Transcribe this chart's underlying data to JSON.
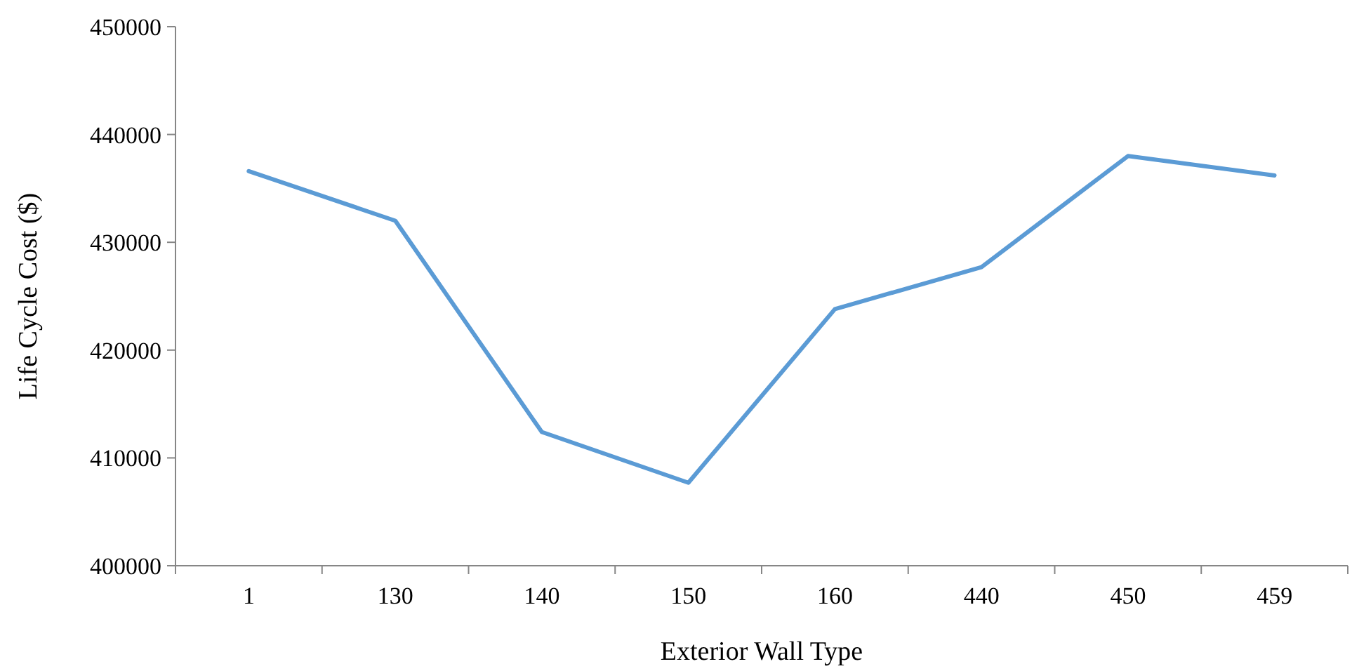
{
  "chart_data": {
    "type": "line",
    "xlabel": "Exterior Wall Type",
    "ylabel": "Life Cycle Cost ($)",
    "categories": [
      "1",
      "130",
      "140",
      "150",
      "160",
      "440",
      "450",
      "459"
    ],
    "series": [
      {
        "color": "#5b9bd5",
        "values": [
          436600,
          432000,
          412400,
          407700,
          423800,
          427700,
          438000,
          436200
        ]
      }
    ],
    "ylim": [
      400000,
      450000
    ],
    "yticks": [
      400000,
      410000,
      420000,
      430000,
      440000,
      450000
    ],
    "marker": "none",
    "line_style": "solid"
  }
}
